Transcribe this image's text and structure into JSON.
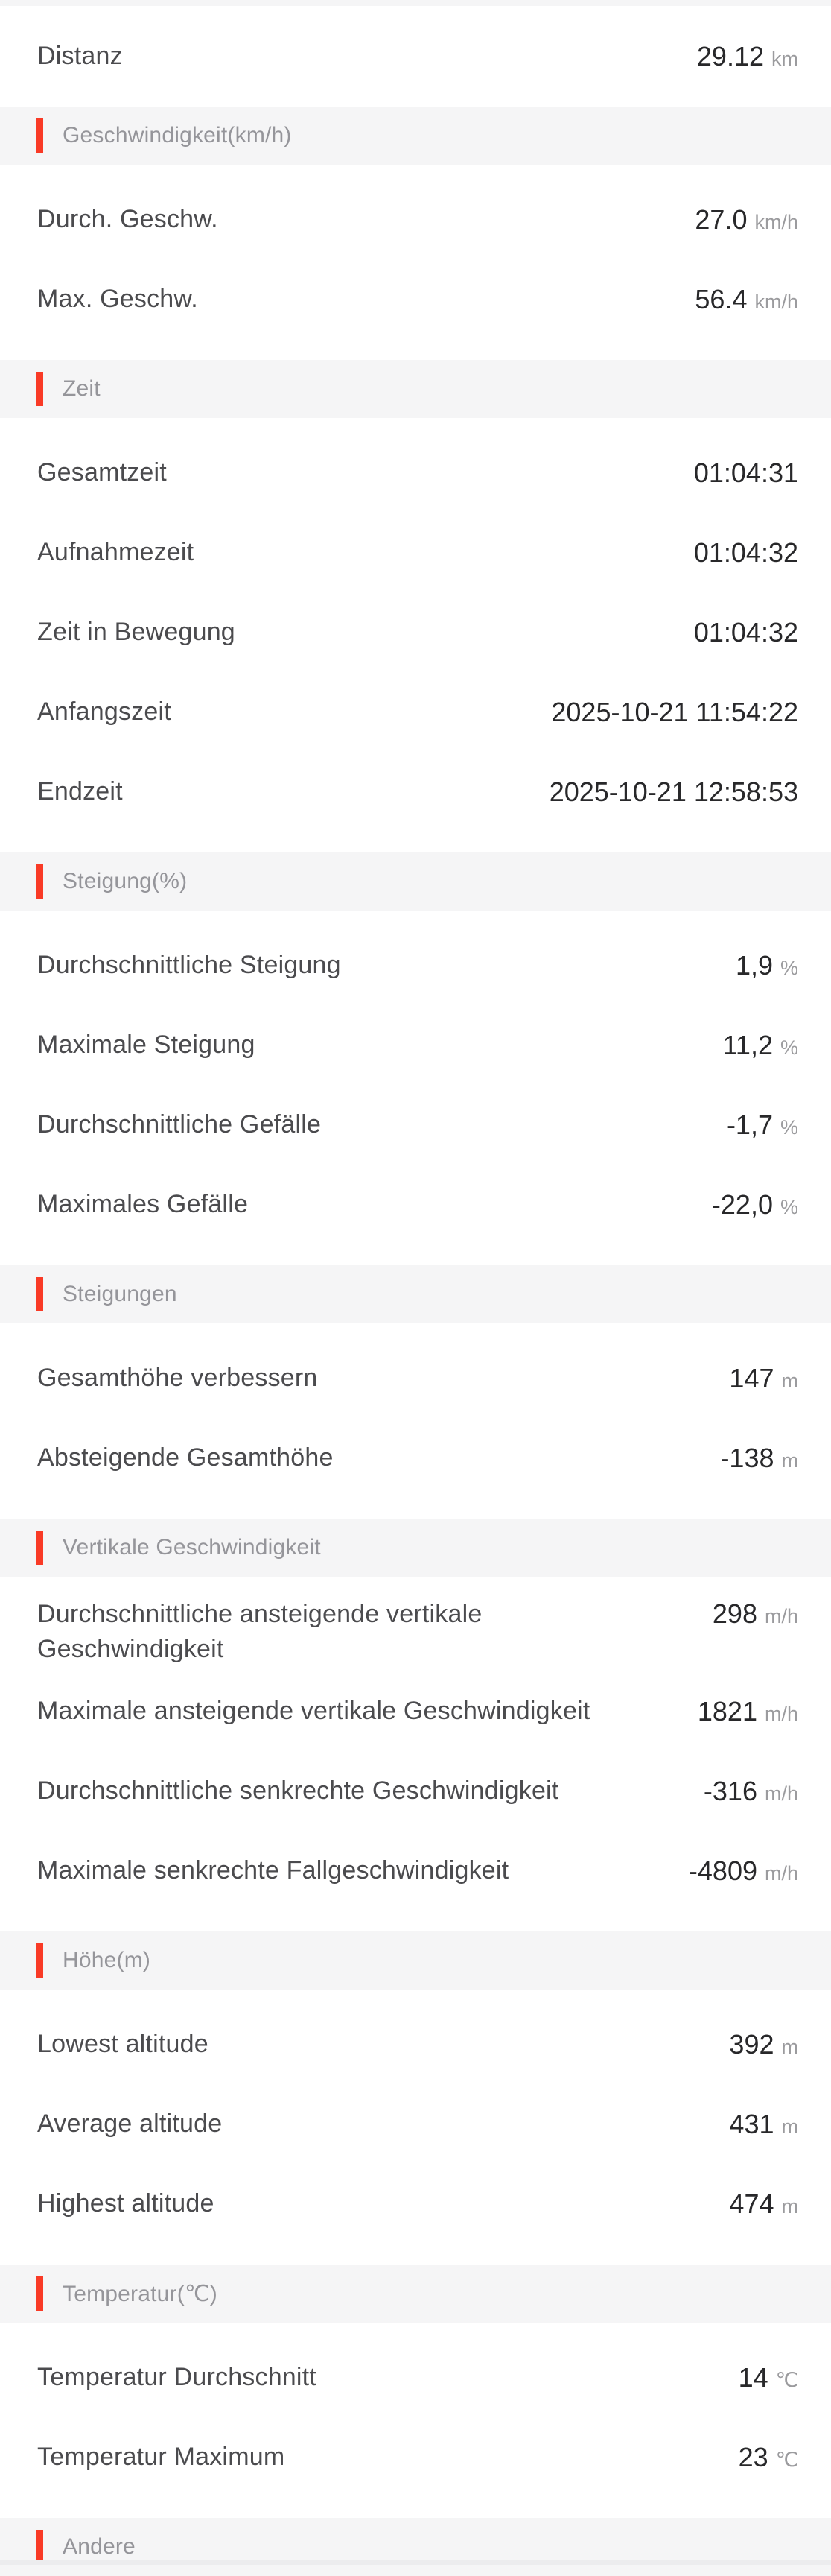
{
  "top_row": {
    "label": "Distanz",
    "value": "29.12",
    "unit": "km"
  },
  "sections": [
    {
      "title": "Geschwindigkeit(km/h)",
      "rows": [
        {
          "label": "Durch. Geschw.",
          "value": "27.0",
          "unit": "km/h"
        },
        {
          "label": "Max. Geschw.",
          "value": "56.4",
          "unit": "km/h"
        }
      ]
    },
    {
      "title": "Zeit",
      "rows": [
        {
          "label": "Gesamtzeit",
          "value": "01:04:31"
        },
        {
          "label": "Aufnahmezeit",
          "value": "01:04:32"
        },
        {
          "label": "Zeit in Bewegung",
          "value": "01:04:32"
        },
        {
          "label": "Anfangszeit",
          "value": "2025-10-21 11:54:22"
        },
        {
          "label": "Endzeit",
          "value": "2025-10-21 12:58:53"
        }
      ]
    },
    {
      "title": "Steigung(%)",
      "rows": [
        {
          "label": "Durchschnittliche Steigung",
          "value": "1,9",
          "unit": "%"
        },
        {
          "label": "Maximale Steigung",
          "value": "11,2",
          "unit": "%"
        },
        {
          "label": "Durchschnittliche Gefälle",
          "value": "-1,7",
          "unit": "%"
        },
        {
          "label": "Maximales Gefälle",
          "value": "-22,0",
          "unit": "%"
        }
      ]
    },
    {
      "title": "Steigungen",
      "rows": [
        {
          "label": "Gesamthöhe verbessern",
          "value": "147",
          "unit": "m"
        },
        {
          "label": "Absteigende Gesamthöhe",
          "value": "-138",
          "unit": "m"
        }
      ]
    },
    {
      "title": "Vertikale Geschwindigkeit",
      "rows": [
        {
          "label": "Durchschnittliche ansteigende vertikale Geschwindigkeit",
          "value": "298",
          "unit": "m/h",
          "layout": "wrap"
        },
        {
          "label": "Maximale ansteigende vertikale Geschwindigkeit",
          "value": "1821",
          "unit": "m/h",
          "layout": "overlap"
        },
        {
          "label": "Durchschnittliche senkrechte Geschwindigkeit",
          "value": "-316",
          "unit": "m/h",
          "layout": "overlap"
        },
        {
          "label": "Maximale senkrechte Fallgeschwindigkeit",
          "value": "-4809",
          "unit": "m/h",
          "layout": "overlap"
        }
      ]
    },
    {
      "title": "Höhe(m)",
      "rows": [
        {
          "label": "Lowest altitude",
          "value": "392",
          "unit": "m"
        },
        {
          "label": "Average altitude",
          "value": "431",
          "unit": "m"
        },
        {
          "label": "Highest altitude",
          "value": "474",
          "unit": "m"
        }
      ]
    },
    {
      "title": "Temperatur(℃)",
      "rows": [
        {
          "label": "Temperatur Durchschnitt",
          "value": "14",
          "unit": "℃"
        },
        {
          "label": "Temperatur Maximum",
          "value": "23",
          "unit": "℃"
        }
      ]
    },
    {
      "title": "Andere",
      "rows": []
    }
  ],
  "colors": {
    "accent": "#f93a26",
    "band": "#f5f5f6",
    "label": "#4b4b4e",
    "value": "#28282a",
    "unit": "#9b9b9e",
    "section-title": "#95959a"
  }
}
